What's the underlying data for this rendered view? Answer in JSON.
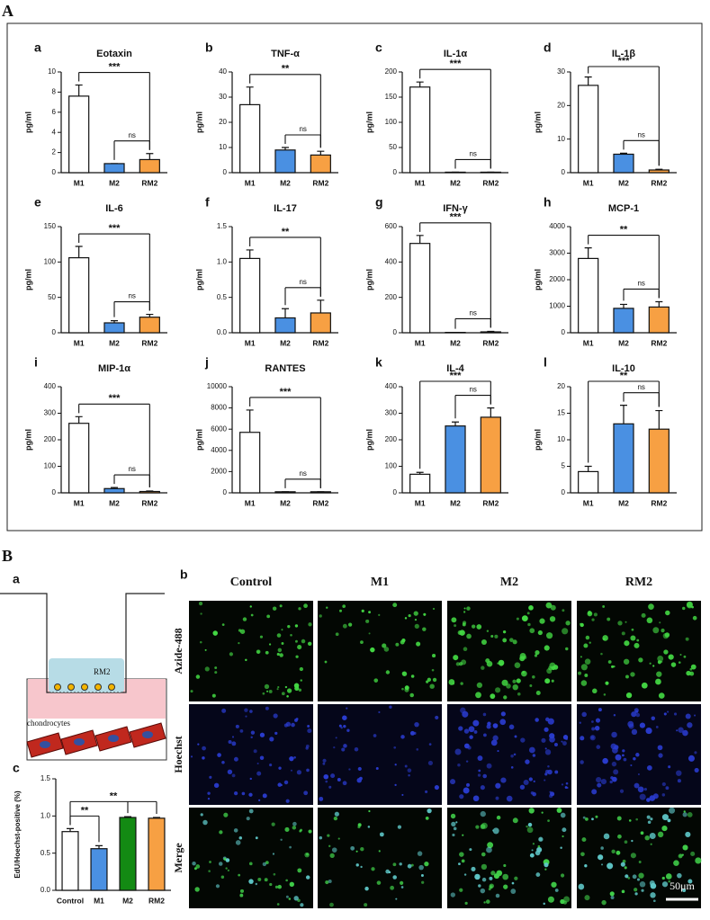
{
  "figure": {
    "panel_A": "A",
    "panel_B": "B",
    "panel_B_sub": [
      "a",
      "b",
      "c"
    ],
    "image_columns": [
      "Control",
      "M1",
      "M2",
      "RM2"
    ],
    "image_rows": [
      "Azide-488",
      "Hoechst",
      "Merge"
    ],
    "scale_bar": "50μm",
    "schematic": {
      "insert": "RM2",
      "cells": "chondrocytes"
    }
  },
  "chart_data": [
    {
      "type": "bar",
      "panel": "a",
      "title": "Eotaxin",
      "y_label": "pg/ml",
      "categories": [
        "M1",
        "M2",
        "RM2"
      ],
      "values": [
        7.6,
        0.9,
        1.3
      ],
      "errors": [
        1.1,
        0,
        0.6
      ],
      "colors": [
        "#ffffff",
        "#4a90e2",
        "#f7a043"
      ],
      "ylim": [
        0,
        10
      ],
      "yticks": [
        0,
        2,
        4,
        6,
        8,
        10
      ],
      "significance": [
        {
          "label": "ns",
          "between": [
            "M2",
            "RM2"
          ]
        },
        {
          "label": "***",
          "between": [
            "M1",
            "RM2"
          ]
        }
      ]
    },
    {
      "type": "bar",
      "panel": "b",
      "title": "TNF-α",
      "y_label": "pg/ml",
      "categories": [
        "M1",
        "M2",
        "RM2"
      ],
      "values": [
        27,
        9,
        7
      ],
      "errors": [
        7,
        1,
        1.5
      ],
      "colors": [
        "#ffffff",
        "#4a90e2",
        "#f7a043"
      ],
      "ylim": [
        0,
        40
      ],
      "yticks": [
        0,
        10,
        20,
        30,
        40
      ],
      "significance": [
        {
          "label": "ns",
          "between": [
            "M2",
            "RM2"
          ]
        },
        {
          "label": "**",
          "between": [
            "M1",
            "RM2"
          ]
        }
      ]
    },
    {
      "type": "bar",
      "panel": "c",
      "title": "IL-1α",
      "y_label": "pg/ml",
      "categories": [
        "M1",
        "M2",
        "RM2"
      ],
      "values": [
        170,
        1,
        1
      ],
      "errors": [
        10,
        0,
        0
      ],
      "colors": [
        "#ffffff",
        "#4a90e2",
        "#f7a043"
      ],
      "ylim": [
        0,
        200
      ],
      "yticks": [
        0,
        50,
        100,
        150,
        200
      ],
      "significance": [
        {
          "label": "ns",
          "between": [
            "M2",
            "RM2"
          ]
        },
        {
          "label": "***",
          "between": [
            "M1",
            "RM2"
          ]
        }
      ]
    },
    {
      "type": "bar",
      "panel": "d",
      "title": "IL-1β",
      "y_label": "pg/ml",
      "categories": [
        "M1",
        "M2",
        "RM2"
      ],
      "values": [
        26,
        5.5,
        0.8
      ],
      "errors": [
        2.5,
        0.3,
        0.2
      ],
      "colors": [
        "#ffffff",
        "#4a90e2",
        "#f7a043"
      ],
      "ylim": [
        0,
        30
      ],
      "yticks": [
        0,
        10,
        20,
        30
      ],
      "significance": [
        {
          "label": "ns",
          "between": [
            "M2",
            "RM2"
          ]
        },
        {
          "label": "***",
          "between": [
            "M1",
            "RM2"
          ]
        }
      ]
    },
    {
      "type": "bar",
      "panel": "e",
      "title": "IL-6",
      "y_label": "pg/ml",
      "categories": [
        "M1",
        "M2",
        "RM2"
      ],
      "values": [
        106,
        14,
        22
      ],
      "errors": [
        16,
        3,
        4
      ],
      "colors": [
        "#ffffff",
        "#4a90e2",
        "#f7a043"
      ],
      "ylim": [
        0,
        150
      ],
      "yticks": [
        0,
        50,
        100,
        150
      ],
      "significance": [
        {
          "label": "ns",
          "between": [
            "M2",
            "RM2"
          ]
        },
        {
          "label": "***",
          "between": [
            "M1",
            "RM2"
          ]
        }
      ]
    },
    {
      "type": "bar",
      "panel": "f",
      "title": "IL-17",
      "y_label": "pg/ml",
      "categories": [
        "M1",
        "M2",
        "RM2"
      ],
      "values": [
        1.05,
        0.21,
        0.28
      ],
      "errors": [
        0.12,
        0.13,
        0.18
      ],
      "colors": [
        "#ffffff",
        "#4a90e2",
        "#f7a043"
      ],
      "ylim": [
        0,
        1.5
      ],
      "yticks": [
        {
          "value": 0,
          "label": "0.0"
        },
        {
          "value": 0.5,
          "label": "0.5"
        },
        {
          "value": 1,
          "label": "1.0"
        },
        {
          "value": 1.5,
          "label": "1.5"
        }
      ],
      "significance": [
        {
          "label": "ns",
          "between": [
            "M2",
            "RM2"
          ]
        },
        {
          "label": "**",
          "between": [
            "M1",
            "RM2"
          ]
        }
      ]
    },
    {
      "type": "bar",
      "panel": "g",
      "title": "IFN-γ",
      "y_label": "pg/ml",
      "categories": [
        "M1",
        "M2",
        "RM2"
      ],
      "values": [
        505,
        2,
        5
      ],
      "errors": [
        45,
        0,
        3
      ],
      "colors": [
        "#ffffff",
        "#4a90e2",
        "#f7a043"
      ],
      "ylim": [
        0,
        600
      ],
      "yticks": [
        0,
        200,
        400,
        600
      ],
      "significance": [
        {
          "label": "ns",
          "between": [
            "M2",
            "RM2"
          ]
        },
        {
          "label": "***",
          "between": [
            "M1",
            "RM2"
          ]
        }
      ]
    },
    {
      "type": "bar",
      "panel": "h",
      "title": "MCP-1",
      "y_label": "pg/ml",
      "categories": [
        "M1",
        "M2",
        "RM2"
      ],
      "values": [
        2800,
        920,
        970
      ],
      "errors": [
        400,
        150,
        200
      ],
      "colors": [
        "#ffffff",
        "#4a90e2",
        "#f7a043"
      ],
      "ylim": [
        0,
        4000
      ],
      "yticks": [
        0,
        1000,
        2000,
        3000,
        4000
      ],
      "significance": [
        {
          "label": "ns",
          "between": [
            "M2",
            "RM2"
          ]
        },
        {
          "label": "**",
          "between": [
            "M1",
            "RM2"
          ]
        }
      ]
    },
    {
      "type": "bar",
      "panel": "i",
      "title": "MIP-1α",
      "y_label": "pg/ml",
      "categories": [
        "M1",
        "M2",
        "RM2"
      ],
      "values": [
        262,
        16,
        5
      ],
      "errors": [
        25,
        4,
        2
      ],
      "colors": [
        "#ffffff",
        "#4a90e2",
        "#f7a043"
      ],
      "ylim": [
        0,
        400
      ],
      "yticks": [
        0,
        100,
        200,
        300,
        400
      ],
      "significance": [
        {
          "label": "ns",
          "between": [
            "M2",
            "RM2"
          ]
        },
        {
          "label": "***",
          "between": [
            "M1",
            "RM2"
          ]
        }
      ]
    },
    {
      "type": "bar",
      "panel": "j",
      "title": "RANTES",
      "y_label": "pg/ml",
      "categories": [
        "M1",
        "M2",
        "RM2"
      ],
      "values": [
        5700,
        100,
        100
      ],
      "errors": [
        2100,
        0,
        0
      ],
      "colors": [
        "#ffffff",
        "#4a90e2",
        "#f7a043"
      ],
      "ylim": [
        0,
        10000
      ],
      "yticks": [
        0,
        2000,
        4000,
        6000,
        8000,
        10000
      ],
      "significance": [
        {
          "label": "ns",
          "between": [
            "M2",
            "RM2"
          ]
        },
        {
          "label": "***",
          "between": [
            "M1",
            "RM2"
          ]
        }
      ]
    },
    {
      "type": "bar",
      "panel": "k",
      "title": "IL-4",
      "y_label": "pg/ml",
      "categories": [
        "M1",
        "M2",
        "RM2"
      ],
      "values": [
        70,
        252,
        285
      ],
      "errors": [
        7,
        15,
        35
      ],
      "colors": [
        "#ffffff",
        "#4a90e2",
        "#f7a043"
      ],
      "ylim": [
        0,
        400
      ],
      "yticks": [
        0,
        100,
        200,
        300,
        400
      ],
      "significance": [
        {
          "label": "ns",
          "between": [
            "M2",
            "RM2"
          ]
        },
        {
          "label": "***",
          "between": [
            "M1",
            "RM2"
          ]
        }
      ]
    },
    {
      "type": "bar",
      "panel": "l",
      "title": "IL-10",
      "y_label": "pg/ml",
      "categories": [
        "M1",
        "M2",
        "RM2"
      ],
      "values": [
        4,
        13,
        12
      ],
      "errors": [
        1,
        3.5,
        3.5
      ],
      "colors": [
        "#ffffff",
        "#4a90e2",
        "#f7a043"
      ],
      "ylim": [
        0,
        20
      ],
      "yticks": [
        0,
        5,
        10,
        15,
        20
      ],
      "significance": [
        {
          "label": "ns",
          "between": [
            "M2",
            "RM2"
          ]
        },
        {
          "label": "**",
          "between": [
            "M1",
            "RM2"
          ]
        }
      ]
    },
    {
      "type": "bar",
      "panel": "c",
      "y_label": "EdU/Hoechst-positive (%)",
      "categories": [
        "Control",
        "M1",
        "M2",
        "RM2"
      ],
      "values": [
        0.79,
        0.56,
        0.98,
        0.97
      ],
      "errors": [
        0.04,
        0.04,
        0.01,
        0.01
      ],
      "colors": [
        "#ffffff",
        "#4a90e2",
        "#138a13",
        "#f7a043"
      ],
      "ylim": [
        0,
        1.5
      ],
      "yticks": [
        {
          "value": 0,
          "label": "0.0"
        },
        {
          "value": 0.5,
          "label": "0.5"
        },
        {
          "value": 1,
          "label": "1.0"
        },
        {
          "value": 1.5,
          "label": "1.5"
        }
      ],
      "significance": [
        {
          "label": "**",
          "between": [
            "Control",
            "M1"
          ]
        },
        {
          "label": "**",
          "between": [
            "Control",
            "M2",
            "RM2"
          ]
        }
      ]
    }
  ]
}
